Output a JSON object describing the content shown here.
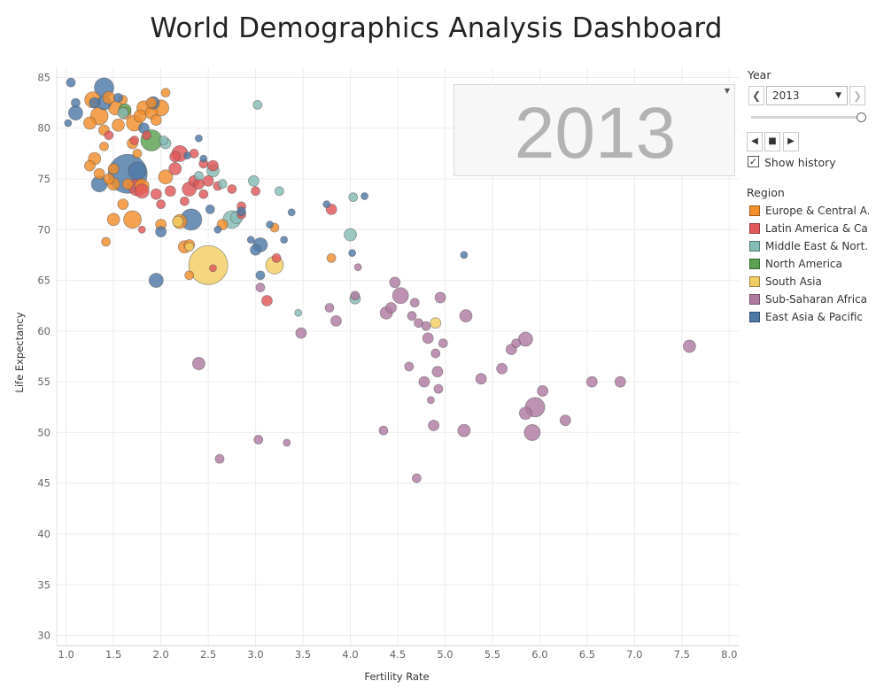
{
  "page": {
    "title": "World Demographics Analysis Dashboard"
  },
  "controls": {
    "year_label": "Year",
    "year_value": "2013",
    "prev_icon": "chevron-left-icon",
    "next_icon": "chevron-right-icon",
    "show_history_label": "Show history",
    "show_history_checked": true,
    "history_check_mark": "✓"
  },
  "year_display": {
    "value": "2013"
  },
  "legend": {
    "title": "Region",
    "items": [
      {
        "label": "Europe & Central A..",
        "color": "#f28e2b"
      },
      {
        "label": "Latin America & Ca..",
        "color": "#e15759"
      },
      {
        "label": "Middle East & Nort..",
        "color": "#86bcb6"
      },
      {
        "label": "North America",
        "color": "#59a14f"
      },
      {
        "label": "South Asia",
        "color": "#f1ce63"
      },
      {
        "label": "Sub-Saharan Africa",
        "color": "#b07aa1"
      },
      {
        "label": "East Asia & Pacific",
        "color": "#4e79a7"
      }
    ]
  },
  "chart_data": {
    "type": "scatter",
    "title": "World Demographics Analysis Dashboard",
    "xlabel": "Fertility Rate",
    "ylabel": "Life Expectancy",
    "xlim": [
      0.9,
      8.1
    ],
    "ylim": [
      29,
      86
    ],
    "xticks": [
      "1.0",
      "1.5",
      "2.0",
      "2.5",
      "3.0",
      "3.5",
      "4.0",
      "4.5",
      "5.0",
      "5.5",
      "6.0",
      "6.5",
      "7.0",
      "7.5",
      "8.0"
    ],
    "yticks": [
      "30",
      "35",
      "40",
      "45",
      "50",
      "55",
      "60",
      "65",
      "70",
      "75",
      "80",
      "85"
    ],
    "grid": true,
    "legend_position": "right",
    "series": [
      {
        "name": "Europe & Central A..",
        "color": "#f28e2b",
        "points": [
          [
            1.28,
            82.8,
            9
          ],
          [
            1.35,
            81.2,
            10
          ],
          [
            1.45,
            83.0,
            7
          ],
          [
            1.52,
            82.0,
            8
          ],
          [
            1.62,
            81.5,
            7
          ],
          [
            1.72,
            80.5,
            9
          ],
          [
            1.78,
            81.2,
            7
          ],
          [
            1.82,
            82.0,
            8
          ],
          [
            1.9,
            81.5,
            7
          ],
          [
            2.0,
            82.0,
            9
          ],
          [
            1.25,
            80.5,
            7
          ],
          [
            1.4,
            79.8,
            6
          ],
          [
            1.55,
            80.3,
            7
          ],
          [
            1.95,
            80.8,
            6
          ],
          [
            2.05,
            83.5,
            5
          ],
          [
            1.7,
            78.5,
            6
          ],
          [
            1.4,
            78.2,
            5
          ],
          [
            1.3,
            77.0,
            7
          ],
          [
            1.5,
            76.0,
            6
          ],
          [
            1.75,
            77.5,
            5
          ],
          [
            1.35,
            75.5,
            6
          ],
          [
            1.45,
            75.0,
            6
          ],
          [
            1.5,
            74.5,
            7
          ],
          [
            1.65,
            74.5,
            6
          ],
          [
            1.8,
            74.3,
            8
          ],
          [
            2.05,
            75.2,
            8
          ],
          [
            1.25,
            76.3,
            6
          ],
          [
            1.6,
            72.5,
            6
          ],
          [
            1.5,
            71.0,
            7
          ],
          [
            1.7,
            71.0,
            10
          ],
          [
            2.0,
            70.5,
            6
          ],
          [
            1.42,
            68.8,
            5
          ],
          [
            2.25,
            68.3,
            7
          ],
          [
            2.2,
            70.8,
            8
          ],
          [
            2.3,
            68.5,
            6
          ],
          [
            2.65,
            70.5,
            6
          ],
          [
            2.3,
            65.5,
            5
          ],
          [
            3.2,
            70.2,
            5
          ],
          [
            3.8,
            67.2,
            5
          ],
          [
            1.9,
            82.5,
            6
          ],
          [
            1.6,
            82.8,
            5
          ]
        ]
      },
      {
        "name": "Latin America & Ca..",
        "color": "#e15759",
        "points": [
          [
            1.45,
            79.3,
            5
          ],
          [
            1.85,
            79.3,
            5
          ],
          [
            1.72,
            78.8,
            5
          ],
          [
            2.15,
            77.2,
            6
          ],
          [
            2.2,
            77.5,
            9
          ],
          [
            2.35,
            77.5,
            5
          ],
          [
            2.45,
            76.5,
            5
          ],
          [
            2.55,
            76.3,
            6
          ],
          [
            2.15,
            76.0,
            7
          ],
          [
            2.35,
            74.8,
            6
          ],
          [
            2.3,
            74.0,
            8
          ],
          [
            2.4,
            74.5,
            6
          ],
          [
            2.5,
            74.8,
            6
          ],
          [
            2.6,
            74.3,
            5
          ],
          [
            2.45,
            73.5,
            5
          ],
          [
            2.75,
            74.0,
            5
          ],
          [
            2.85,
            72.3,
            5
          ],
          [
            3.0,
            73.8,
            5
          ],
          [
            2.25,
            72.8,
            5
          ],
          [
            1.75,
            74.2,
            10
          ],
          [
            1.8,
            73.8,
            8
          ],
          [
            1.95,
            73.5,
            6
          ],
          [
            2.1,
            73.8,
            6
          ],
          [
            3.8,
            72.0,
            6
          ],
          [
            2.85,
            71.5,
            5
          ],
          [
            3.22,
            67.2,
            5
          ],
          [
            2.55,
            66.2,
            4
          ],
          [
            3.12,
            63.0,
            6
          ],
          [
            1.8,
            70.0,
            4
          ],
          [
            2.0,
            72.5,
            5
          ]
        ]
      },
      {
        "name": "Middle East & Nort..",
        "color": "#86bcb6",
        "points": [
          [
            1.6,
            81.5,
            6
          ],
          [
            2.03,
            78.8,
            5
          ],
          [
            2.4,
            75.3,
            5
          ],
          [
            2.55,
            75.8,
            7
          ],
          [
            2.65,
            74.5,
            5
          ],
          [
            2.98,
            74.8,
            6
          ],
          [
            3.25,
            73.8,
            5
          ],
          [
            4.03,
            73.2,
            5
          ],
          [
            2.75,
            71.0,
            10
          ],
          [
            2.8,
            71.2,
            7
          ],
          [
            3.45,
            61.8,
            4
          ],
          [
            4.0,
            69.5,
            7
          ],
          [
            4.05,
            63.2,
            6
          ],
          [
            2.05,
            78.5,
            6
          ],
          [
            3.02,
            82.3,
            5
          ]
        ]
      },
      {
        "name": "North America",
        "color": "#59a14f",
        "points": [
          [
            1.9,
            78.8,
            12
          ],
          [
            1.62,
            81.8,
            7
          ]
        ]
      },
      {
        "name": "South Asia",
        "color": "#f1ce63",
        "points": [
          [
            2.5,
            66.5,
            22
          ],
          [
            2.18,
            70.8,
            6
          ],
          [
            2.3,
            68.3,
            5
          ],
          [
            3.2,
            66.5,
            10
          ],
          [
            4.9,
            60.8,
            6
          ]
        ]
      },
      {
        "name": "Sub-Saharan Africa",
        "color": "#b07aa1",
        "points": [
          [
            2.4,
            56.8,
            7
          ],
          [
            2.62,
            47.4,
            5
          ],
          [
            3.03,
            49.3,
            5
          ],
          [
            3.05,
            64.3,
            5
          ],
          [
            3.33,
            49.0,
            4
          ],
          [
            3.48,
            59.8,
            6
          ],
          [
            3.78,
            62.3,
            5
          ],
          [
            3.85,
            61.0,
            6
          ],
          [
            4.05,
            63.5,
            5
          ],
          [
            4.08,
            66.3,
            4
          ],
          [
            4.35,
            50.2,
            5
          ],
          [
            4.38,
            61.8,
            7
          ],
          [
            4.43,
            62.3,
            6
          ],
          [
            4.47,
            64.8,
            6
          ],
          [
            4.53,
            63.5,
            9
          ],
          [
            4.62,
            56.5,
            5
          ],
          [
            4.65,
            61.5,
            5
          ],
          [
            4.68,
            62.8,
            5
          ],
          [
            4.7,
            45.5,
            5
          ],
          [
            4.72,
            60.8,
            5
          ],
          [
            4.78,
            55.0,
            6
          ],
          [
            4.8,
            60.5,
            5
          ],
          [
            4.82,
            59.3,
            6
          ],
          [
            4.85,
            53.2,
            4
          ],
          [
            4.88,
            50.7,
            6
          ],
          [
            4.9,
            57.8,
            5
          ],
          [
            4.92,
            56.0,
            6
          ],
          [
            4.93,
            54.3,
            5
          ],
          [
            4.95,
            63.3,
            6
          ],
          [
            4.98,
            58.8,
            5
          ],
          [
            5.2,
            50.2,
            7
          ],
          [
            5.22,
            61.5,
            7
          ],
          [
            5.38,
            55.3,
            6
          ],
          [
            5.6,
            56.3,
            6
          ],
          [
            5.7,
            58.2,
            6
          ],
          [
            5.75,
            58.8,
            5
          ],
          [
            5.85,
            59.2,
            8
          ],
          [
            5.85,
            51.9,
            7
          ],
          [
            5.95,
            52.5,
            11
          ],
          [
            5.92,
            50.0,
            9
          ],
          [
            6.03,
            54.1,
            6
          ],
          [
            6.27,
            51.2,
            6
          ],
          [
            6.55,
            55.0,
            6
          ],
          [
            6.85,
            55.0,
            6
          ],
          [
            7.58,
            58.5,
            7
          ]
        ]
      },
      {
        "name": "East Asia & Pacific",
        "color": "#4e79a7",
        "points": [
          [
            1.02,
            80.5,
            4
          ],
          [
            1.05,
            84.5,
            5
          ],
          [
            1.1,
            82.5,
            5
          ],
          [
            1.1,
            81.5,
            8
          ],
          [
            1.4,
            84.0,
            11
          ],
          [
            1.4,
            82.5,
            8
          ],
          [
            1.3,
            82.5,
            6
          ],
          [
            1.55,
            83.0,
            5
          ],
          [
            1.82,
            80.0,
            6
          ],
          [
            1.92,
            82.5,
            7
          ],
          [
            1.65,
            75.5,
            22
          ],
          [
            1.75,
            75.8,
            10
          ],
          [
            1.35,
            74.5,
            9
          ],
          [
            2.28,
            77.3,
            4
          ],
          [
            2.4,
            79.0,
            4
          ],
          [
            2.45,
            77.0,
            4
          ],
          [
            2.32,
            71.0,
            12
          ],
          [
            2.0,
            69.8,
            6
          ],
          [
            1.95,
            65.0,
            8
          ],
          [
            2.52,
            72.0,
            5
          ],
          [
            2.6,
            70.0,
            4
          ],
          [
            2.85,
            71.8,
            5
          ],
          [
            2.95,
            69.0,
            4
          ],
          [
            3.05,
            68.5,
            8
          ],
          [
            3.0,
            68.0,
            6
          ],
          [
            3.15,
            70.5,
            4
          ],
          [
            3.3,
            69.0,
            4
          ],
          [
            3.38,
            71.7,
            4
          ],
          [
            3.75,
            72.5,
            4
          ],
          [
            4.15,
            73.3,
            4
          ],
          [
            4.02,
            67.7,
            4
          ],
          [
            5.2,
            67.5,
            4
          ],
          [
            3.05,
            65.5,
            5
          ]
        ]
      }
    ]
  }
}
